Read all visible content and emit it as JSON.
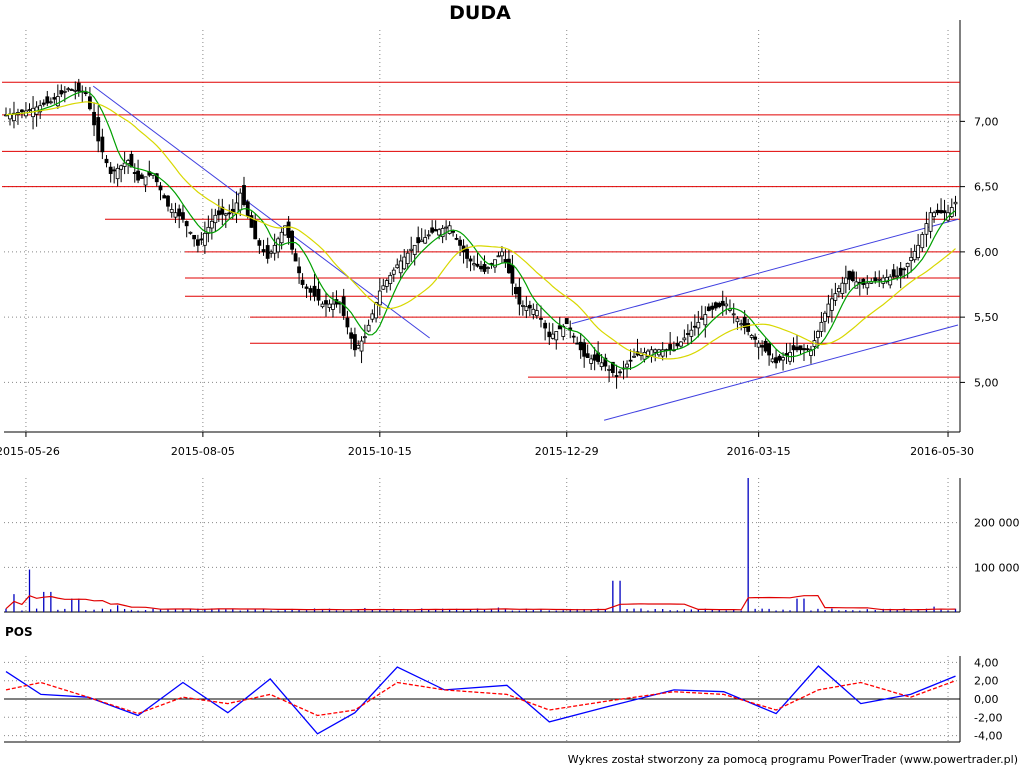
{
  "chart_data": [
    {
      "type": "candlestick",
      "title": "DUDA",
      "x_tick_labels": [
        "2015-05-26",
        "2015-08-05",
        "2015-10-15",
        "2015-12-29",
        "2016-03-15",
        "2016-05-30"
      ],
      "x_range": [
        "2015-05-18",
        "2016-06-03"
      ],
      "y_tick_labels": [
        "5,00",
        "5,50",
        "6,00",
        "6,50",
        "7,00"
      ],
      "ylim": [
        4.62,
        7.7
      ],
      "grid": true,
      "close_series": [
        [
          "2015-05-18",
          7.05
        ],
        [
          "2015-05-26",
          7.08
        ],
        [
          "2015-06-05",
          7.15
        ],
        [
          "2015-06-12",
          7.25
        ],
        [
          "2015-06-19",
          7.22
        ],
        [
          "2015-06-24",
          6.85
        ],
        [
          "2015-06-29",
          6.6
        ],
        [
          "2015-07-06",
          6.7
        ],
        [
          "2015-07-10",
          6.55
        ],
        [
          "2015-07-16",
          6.6
        ],
        [
          "2015-07-22",
          6.35
        ],
        [
          "2015-07-28",
          6.25
        ],
        [
          "2015-08-03",
          6.05
        ],
        [
          "2015-08-10",
          6.28
        ],
        [
          "2015-08-17",
          6.3
        ],
        [
          "2015-08-20",
          6.45
        ],
        [
          "2015-08-26",
          6.1
        ],
        [
          "2015-08-31",
          5.95
        ],
        [
          "2015-09-07",
          6.2
        ],
        [
          "2015-09-14",
          5.75
        ],
        [
          "2015-09-22",
          5.6
        ],
        [
          "2015-09-29",
          5.6
        ],
        [
          "2015-10-05",
          5.25
        ],
        [
          "2015-10-09",
          5.35
        ],
        [
          "2015-10-15",
          5.7
        ],
        [
          "2015-10-22",
          5.9
        ],
        [
          "2015-10-29",
          6.05
        ],
        [
          "2015-11-05",
          6.15
        ],
        [
          "2015-11-12",
          6.2
        ],
        [
          "2015-11-19",
          5.95
        ],
        [
          "2015-11-26",
          5.85
        ],
        [
          "2015-12-03",
          6.0
        ],
        [
          "2015-12-10",
          5.6
        ],
        [
          "2015-12-17",
          5.55
        ],
        [
          "2015-12-22",
          5.35
        ],
        [
          "2015-12-29",
          5.45
        ],
        [
          "2016-01-05",
          5.2
        ],
        [
          "2016-01-12",
          5.15
        ],
        [
          "2016-01-18",
          5.05
        ],
        [
          "2016-01-25",
          5.2
        ],
        [
          "2016-02-01",
          5.25
        ],
        [
          "2016-02-10",
          5.25
        ],
        [
          "2016-02-17",
          5.4
        ],
        [
          "2016-02-24",
          5.55
        ],
        [
          "2016-03-02",
          5.6
        ],
        [
          "2016-03-08",
          5.45
        ],
        [
          "2016-03-15",
          5.3
        ],
        [
          "2016-03-22",
          5.15
        ],
        [
          "2016-03-29",
          5.25
        ],
        [
          "2016-04-05",
          5.25
        ],
        [
          "2016-04-12",
          5.6
        ],
        [
          "2016-04-19",
          5.8
        ],
        [
          "2016-04-26",
          5.75
        ],
        [
          "2016-05-04",
          5.8
        ],
        [
          "2016-05-11",
          5.82
        ],
        [
          "2016-05-18",
          6.05
        ],
        [
          "2016-05-23",
          6.3
        ],
        [
          "2016-05-30",
          6.3
        ],
        [
          "2016-06-02",
          6.38
        ]
      ],
      "support_resistance_levels": [
        7.3,
        7.05,
        6.77,
        6.5,
        6.25,
        6.0,
        5.8,
        5.66,
        5.5,
        5.3,
        5.04
      ],
      "trend_lines": [
        {
          "from": [
            "2015-06-22",
            7.27
          ],
          "to": [
            "2015-11-04",
            5.34
          ]
        },
        {
          "from": [
            "2015-12-31",
            5.45
          ],
          "to": [
            "2016-06-03",
            6.25
          ]
        },
        {
          "from": [
            "2016-01-13",
            4.71
          ],
          "to": [
            "2016-06-03",
            5.44
          ]
        }
      ]
    },
    {
      "type": "bar",
      "title": "",
      "y_tick_labels": [
        "100 000",
        "200 000"
      ],
      "ylim": [
        0,
        300000
      ],
      "volume": [
        [
          "2015-05-20",
          40000
        ],
        [
          "2015-05-27",
          95000
        ],
        [
          "2015-06-04",
          45000
        ],
        [
          "2015-06-15",
          30000
        ],
        [
          "2015-07-01",
          15000
        ],
        [
          "2015-08-10",
          8000
        ],
        [
          "2015-10-10",
          9000
        ],
        [
          "2015-12-01",
          10000
        ],
        [
          "2016-01-18",
          70000
        ],
        [
          "2016-03-11",
          300000
        ],
        [
          "2016-04-01",
          30000
        ],
        [
          "2016-05-25",
          12000
        ]
      ]
    },
    {
      "type": "line",
      "title": "POS",
      "y_tick_labels": [
        "-4,00",
        "-2,00",
        "0,00",
        "2,00",
        "4,00"
      ],
      "ylim": [
        -4.7,
        4.7
      ],
      "series": [
        {
          "name": "",
          "color": "#0000ff",
          "values": [
            [
              "2015-05-18",
              3.0
            ],
            [
              "2015-06-01",
              0.5
            ],
            [
              "2015-06-20",
              0.2
            ],
            [
              "2015-07-10",
              -1.8
            ],
            [
              "2015-07-28",
              1.8
            ],
            [
              "2015-08-15",
              -1.5
            ],
            [
              "2015-09-01",
              2.2
            ],
            [
              "2015-09-20",
              -3.8
            ],
            [
              "2015-10-05",
              -1.5
            ],
            [
              "2015-10-22",
              3.5
            ],
            [
              "2015-11-10",
              1.0
            ],
            [
              "2015-12-05",
              1.5
            ],
            [
              "2015-12-22",
              -2.5
            ],
            [
              "2016-01-15",
              -0.8
            ],
            [
              "2016-02-10",
              1.0
            ],
            [
              "2016-03-01",
              0.8
            ],
            [
              "2016-03-22",
              -1.6
            ],
            [
              "2016-04-08",
              3.6
            ],
            [
              "2016-04-25",
              -0.5
            ],
            [
              "2016-05-15",
              0.5
            ],
            [
              "2016-06-02",
              2.5
            ]
          ]
        },
        {
          "name": "",
          "color": "#ff0000",
          "values": [
            [
              "2015-05-18",
              1.0
            ],
            [
              "2015-06-01",
              1.8
            ],
            [
              "2015-06-20",
              0.2
            ],
            [
              "2015-07-10",
              -1.6
            ],
            [
              "2015-07-28",
              0.2
            ],
            [
              "2015-08-15",
              -0.5
            ],
            [
              "2015-09-01",
              0.5
            ],
            [
              "2015-09-20",
              -1.8
            ],
            [
              "2015-10-05",
              -1.2
            ],
            [
              "2015-10-22",
              1.8
            ],
            [
              "2015-11-10",
              1.0
            ],
            [
              "2015-12-05",
              0.5
            ],
            [
              "2015-12-22",
              -1.2
            ],
            [
              "2016-01-15",
              -0.2
            ],
            [
              "2016-02-10",
              0.8
            ],
            [
              "2016-03-01",
              0.5
            ],
            [
              "2016-03-22",
              -1.2
            ],
            [
              "2016-04-08",
              1.0
            ],
            [
              "2016-04-25",
              1.8
            ],
            [
              "2016-05-15",
              0.2
            ],
            [
              "2016-06-02",
              2.0
            ]
          ]
        }
      ]
    }
  ],
  "footer": "Wykres został stworzony za pomocą programu PowerTrader (www.powertrader.pl)"
}
